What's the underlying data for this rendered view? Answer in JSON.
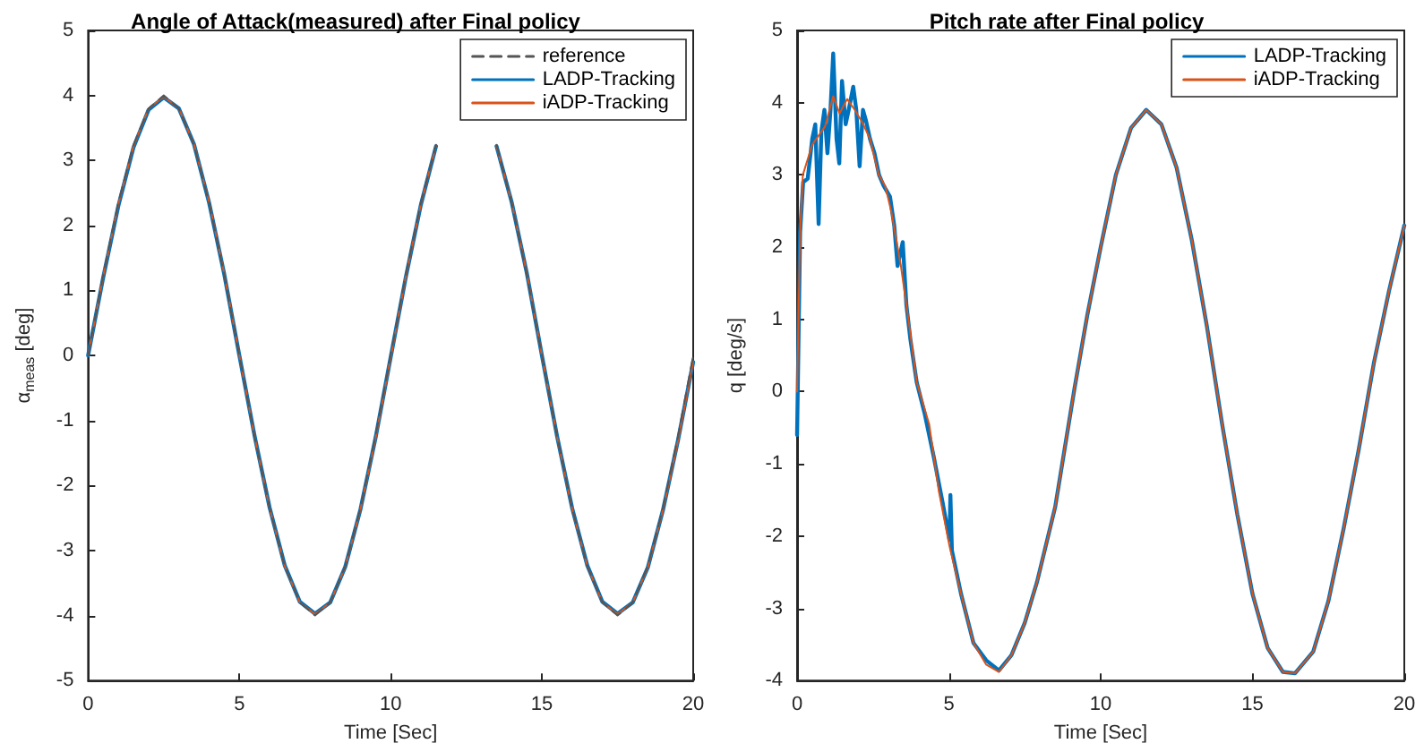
{
  "chart_data": [
    {
      "type": "line",
      "title": "Angle of Attack(measured) after Final policy",
      "xlabel": "Time [Sec]",
      "ylabel": "α$_{meas}$ [deg]",
      "x": [
        0,
        0.5,
        1,
        1.5,
        2,
        2.5,
        3,
        3.5,
        4,
        4.5,
        5,
        5.5,
        6,
        6.5,
        7,
        7.5,
        8,
        8.5,
        9,
        9.5,
        10,
        10.5,
        11,
        11.5,
        12,
        12.5,
        13,
        13.5,
        14,
        14.5,
        15,
        15.5,
        16,
        16.5,
        17,
        17.5,
        18,
        18.5,
        19,
        19.5,
        20
      ],
      "series": [
        {
          "name": "reference",
          "color": "#555555",
          "line_style": "dashed",
          "values": [
            0,
            1.24,
            2.35,
            3.24,
            3.8,
            4,
            3.8,
            3.24,
            2.35,
            1.24,
            0,
            -1.24,
            -2.35,
            -3.24,
            -3.8,
            -4,
            -3.8,
            -3.24,
            -2.35,
            -1.24,
            0,
            1.24,
            2.35,
            3.24,
            null,
            null,
            null,
            3.24,
            2.35,
            1.24,
            0,
            -1.24,
            -2.35,
            -3.24,
            -3.8,
            -4,
            -3.8,
            -3.24,
            -2.35,
            -1.24,
            0
          ]
        },
        {
          "name": "LADP-Tracking",
          "color": "#0072bd",
          "line_style": "solid",
          "values": [
            0,
            1.2,
            2.3,
            3.2,
            3.78,
            3.97,
            3.8,
            3.25,
            2.35,
            1.25,
            0,
            -1.23,
            -2.34,
            -3.23,
            -3.79,
            -3.97,
            -3.8,
            -3.25,
            -2.37,
            -1.27,
            -0.03,
            1.2,
            2.32,
            3.22,
            null,
            null,
            null,
            3.22,
            2.36,
            1.27,
            0,
            -1.24,
            -2.35,
            -3.23,
            -3.79,
            -3.97,
            -3.8,
            -3.26,
            -2.38,
            -1.3,
            -0.1
          ]
        },
        {
          "name": "iADP-Tracking",
          "color": "#d95319",
          "line_style": "solid",
          "values": [
            0,
            1.22,
            2.33,
            3.22,
            3.8,
            3.98,
            3.8,
            3.25,
            2.36,
            1.26,
            0,
            -1.24,
            -2.35,
            -3.24,
            -3.8,
            -3.98,
            -3.8,
            -3.25,
            -2.37,
            -1.28,
            -0.04,
            1.21,
            2.33,
            3.23,
            null,
            null,
            null,
            3.22,
            2.36,
            1.27,
            0,
            -1.25,
            -2.36,
            -3.24,
            -3.8,
            -3.98,
            -3.8,
            -3.26,
            -2.38,
            -1.31,
            -0.1
          ]
        }
      ],
      "xlim": [
        0,
        20
      ],
      "xticks": [
        0,
        5,
        10,
        15,
        20
      ],
      "ylim": [
        -5,
        5
      ],
      "yticks": [
        -5,
        -4,
        -3,
        -2,
        -1,
        0,
        1,
        2,
        3,
        4,
        5
      ],
      "grid": false,
      "legend": "top right"
    },
    {
      "type": "line",
      "title": "Pitch rate after Final policy",
      "xlabel": "Time [Sec]",
      "ylabel": "q [deg/s]",
      "series": [
        {
          "name": "LADP-Tracking",
          "color": "#0072bd",
          "line_style": "solid",
          "x": [
            0,
            0.1,
            0.2,
            0.35,
            0.5,
            0.6,
            0.71,
            0.8,
            0.9,
            1.0,
            1.1,
            1.19,
            1.3,
            1.39,
            1.48,
            1.6,
            1.7,
            1.85,
            1.95,
            2.06,
            2.17,
            2.27,
            2.4,
            2.55,
            2.7,
            2.85,
            3.06,
            3.2,
            3.31,
            3.48,
            3.6,
            3.73,
            3.94,
            4.2,
            4.5,
            4.8,
            5.02,
            5.05,
            5.1,
            5.4,
            5.81,
            6.23,
            6.65,
            7.06,
            7.5,
            7.9,
            8.5,
            9.14,
            9.56,
            10,
            10.5,
            11,
            11.5,
            12,
            12.5,
            13,
            13.5,
            14,
            14.5,
            15,
            15.5,
            16,
            16.4,
            17,
            17.5,
            18,
            18.5,
            19,
            19.5,
            20
          ],
          "values": [
            -0.6,
            2.2,
            2.9,
            2.95,
            3.5,
            3.7,
            2.32,
            3.6,
            3.9,
            3.3,
            3.9,
            4.68,
            3.5,
            3.16,
            4.3,
            3.7,
            3.9,
            4.22,
            3.9,
            3.12,
            3.9,
            3.75,
            3.5,
            3.3,
            3.0,
            2.85,
            2.7,
            2.3,
            1.74,
            2.07,
            1.2,
            0.73,
            0.13,
            -0.3,
            -0.9,
            -1.55,
            -2.05,
            -1.43,
            -2.2,
            -2.8,
            -3.48,
            -3.72,
            -3.86,
            -3.65,
            -3.2,
            -2.64,
            -1.6,
            0.05,
            1.06,
            2.0,
            3.0,
            3.65,
            3.9,
            3.7,
            3.1,
            2.1,
            0.9,
            -0.45,
            -1.7,
            -2.8,
            -3.55,
            -3.88,
            -3.9,
            -3.6,
            -2.9,
            -1.9,
            -0.8,
            0.4,
            1.4,
            2.3
          ]
        },
        {
          "name": "iADP-Tracking",
          "color": "#d95319",
          "line_style": "solid",
          "x": [
            0,
            0.1,
            0.19,
            0.5,
            0.92,
            1.19,
            1.4,
            1.65,
            1.9,
            2.17,
            2.4,
            2.69,
            2.9,
            3.1,
            3.42,
            3.7,
            3.94,
            4.35,
            4.67,
            5.02,
            5.4,
            5.81,
            6.23,
            6.65,
            7.06,
            7.5,
            7.9,
            8.5,
            9.14,
            9.56,
            10,
            10.5,
            11,
            11.5,
            12,
            12.5,
            13,
            13.5,
            14,
            14.5,
            15,
            15.5,
            16,
            16.4,
            17,
            17.5,
            18,
            18.5,
            19,
            19.5,
            20
          ],
          "values": [
            0,
            2.2,
            3.0,
            3.42,
            3.67,
            4.09,
            3.85,
            4.05,
            3.9,
            3.71,
            3.5,
            3.0,
            2.85,
            2.5,
            1.74,
            0.9,
            0.13,
            -0.45,
            -1.38,
            -2.14,
            -2.8,
            -3.48,
            -3.78,
            -3.88,
            -3.65,
            -3.2,
            -2.64,
            -1.6,
            0.05,
            1.06,
            2.0,
            3.0,
            3.65,
            3.9,
            3.7,
            3.1,
            2.1,
            0.9,
            -0.45,
            -1.7,
            -2.8,
            -3.55,
            -3.88,
            -3.9,
            -3.6,
            -2.9,
            -1.9,
            -0.8,
            0.4,
            1.4,
            2.3
          ]
        }
      ],
      "xlim": [
        0,
        20
      ],
      "xticks": [
        0,
        5,
        10,
        15,
        20
      ],
      "ylim": [
        -4,
        5
      ],
      "yticks": [
        -4,
        -3,
        -2,
        -1,
        0,
        1,
        2,
        3,
        4,
        5
      ],
      "grid": false,
      "legend": "top right"
    }
  ]
}
